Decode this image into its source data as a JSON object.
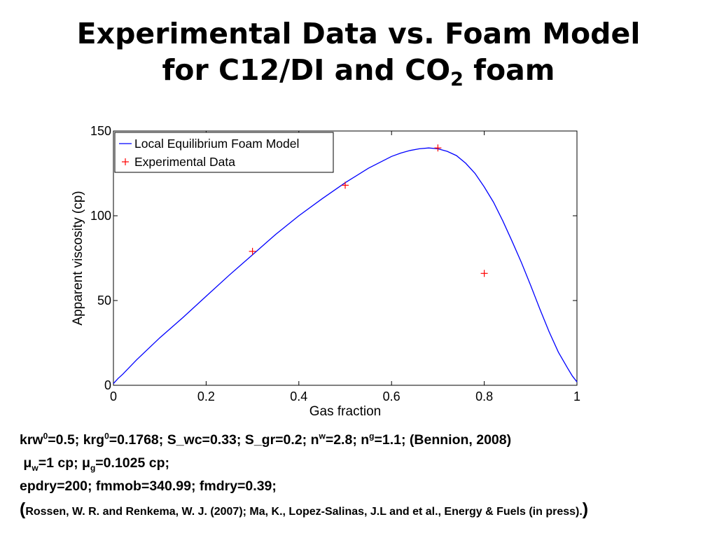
{
  "slide": {
    "title_line1": "Experimental Data vs. Foam Model",
    "title_line2_a": "for C12/DI and CO",
    "title_line2_sub": "2",
    "title_line2_b": " foam"
  },
  "params": {
    "line1": {
      "krw": "krw",
      "krw_sup": "0",
      "krw_val": "=0.5; krg",
      "krg_sup": "0",
      "krg_val": "=0.1768; S_wc=0.33; S_gr=0.2; n",
      "nw_sup": "w",
      "nw_val": "=2.8; n",
      "ng_sup": "g",
      "ng_val": "=1.1; (Bennion, 2008)"
    },
    "line2": {
      "mu_w": "μ",
      "mu_w_sub": "w",
      "mu_w_val": "=1 cp; μ",
      "mu_g_sub": "g",
      "mu_g_val": "=0.1025 cp;"
    },
    "line3": "epdry=200; fmmob=340.99; fmdry=0.39;",
    "line4": {
      "open": "(",
      "text": "Rossen, W. R. and Renkema, W. J. (2007); Ma, K., Lopez-Salinas, J.L and et al., Energy & Fuels (in press).",
      "close": ")"
    }
  },
  "chart_data": {
    "type": "line",
    "xlabel": "Gas fraction",
    "ylabel": "Apparent viscosity (cp)",
    "xlim": [
      0,
      1
    ],
    "ylim": [
      0,
      150
    ],
    "xticks": [
      0,
      0.2,
      0.4,
      0.6,
      0.8,
      1
    ],
    "xtick_labels": [
      "0",
      "0.2",
      "0.4",
      "0.6",
      "0.8",
      "1"
    ],
    "yticks": [
      0,
      50,
      100,
      150
    ],
    "ytick_labels": [
      "0",
      "50",
      "100",
      "150"
    ],
    "grid": false,
    "legend_position": "top-left",
    "series": [
      {
        "name": "Local Equilibrium Foam Model",
        "kind": "line",
        "color": "#0000ff",
        "x": [
          0,
          0.01,
          0.02,
          0.05,
          0.1,
          0.15,
          0.2,
          0.25,
          0.3,
          0.35,
          0.4,
          0.45,
          0.5,
          0.55,
          0.6,
          0.62,
          0.64,
          0.66,
          0.68,
          0.7,
          0.72,
          0.74,
          0.76,
          0.78,
          0.8,
          0.82,
          0.84,
          0.86,
          0.88,
          0.9,
          0.92,
          0.94,
          0.96,
          0.98,
          0.99,
          1.0
        ],
        "y": [
          1,
          4,
          6.5,
          15,
          28,
          40,
          52.5,
          65,
          77,
          89,
          100,
          110,
          119.5,
          128,
          135,
          137,
          138.5,
          139.5,
          140,
          139.5,
          138,
          135.5,
          131,
          125,
          117,
          108,
          97,
          85,
          72.5,
          59,
          45,
          31.5,
          19.5,
          10,
          5.5,
          2
        ]
      },
      {
        "name": "Experimental Data",
        "kind": "marker",
        "marker": "+",
        "color": "#ff0000",
        "x": [
          0.3,
          0.5,
          0.7,
          0.8
        ],
        "y": [
          79,
          118,
          140,
          66
        ]
      }
    ]
  }
}
